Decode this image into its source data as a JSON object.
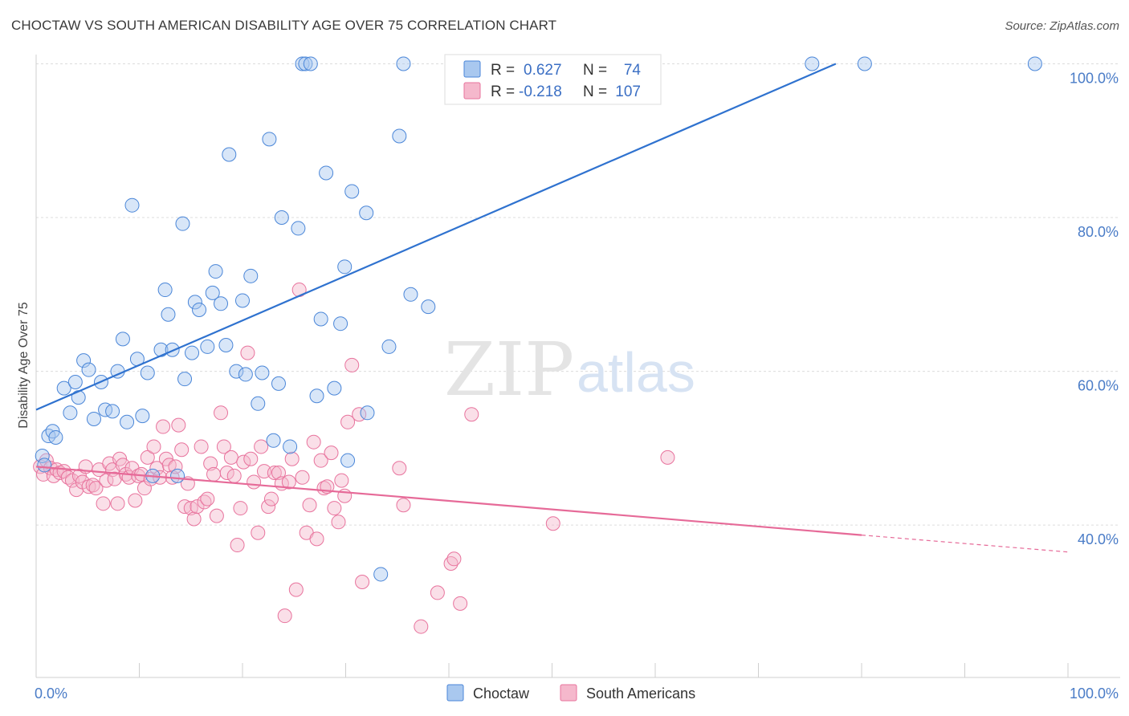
{
  "title": "CHOCTAW VS SOUTH AMERICAN DISABILITY AGE OVER 75 CORRELATION CHART",
  "source": "Source: ZipAtlas.com",
  "watermark": {
    "zip": "ZIP",
    "atlas": "atlas"
  },
  "colors": {
    "blue": "#4a86d8",
    "blue_fill": "#a9c8ef",
    "pink": "#e8739d",
    "pink_fill": "#f5b8cc",
    "tick_text": "#4a7cc7"
  },
  "legend": {
    "rows": [
      {
        "r_label": "R =",
        "r_value": "0.627",
        "n_label": "N =",
        "n_value": "74"
      },
      {
        "r_label": "R =",
        "r_value": "-0.218",
        "n_label": "N =",
        "n_value": "107"
      }
    ]
  },
  "bottom_legend": [
    "Choctaw",
    "South Americans"
  ],
  "chart_data": {
    "type": "scatter",
    "title": "CHOCTAW VS SOUTH AMERICAN DISABILITY AGE OVER 75 CORRELATION CHART",
    "xlabel": "",
    "ylabel": "Disability Age Over 75",
    "xlim": [
      0,
      100
    ],
    "ylim": [
      18,
      102
    ],
    "x_tick_labels": [
      "0.0%",
      "100.0%"
    ],
    "y_ticks": [
      40,
      60,
      80,
      100
    ],
    "y_tick_labels": [
      "40.0%",
      "60.0%",
      "80.0%",
      "100.0%"
    ],
    "grid": true,
    "series": [
      {
        "name": "Choctaw",
        "color": "#4a86d8",
        "trend": {
          "x": [
            0,
            77.5
          ],
          "y": [
            55.0,
            100.0
          ]
        },
        "points": [
          [
            0.6,
            49.0
          ],
          [
            0.8,
            47.8
          ],
          [
            1.2,
            51.6
          ],
          [
            1.6,
            52.2
          ],
          [
            1.9,
            51.4
          ],
          [
            2.7,
            57.8
          ],
          [
            3.3,
            54.6
          ],
          [
            3.8,
            58.6
          ],
          [
            4.1,
            56.6
          ],
          [
            4.6,
            61.4
          ],
          [
            5.1,
            60.2
          ],
          [
            5.6,
            53.8
          ],
          [
            6.3,
            58.6
          ],
          [
            6.7,
            55.0
          ],
          [
            7.4,
            54.8
          ],
          [
            7.9,
            60.0
          ],
          [
            8.4,
            64.2
          ],
          [
            8.8,
            53.4
          ],
          [
            9.3,
            81.6
          ],
          [
            9.8,
            61.6
          ],
          [
            10.3,
            54.2
          ],
          [
            10.8,
            59.8
          ],
          [
            11.3,
            46.4
          ],
          [
            12.1,
            62.8
          ],
          [
            12.5,
            70.6
          ],
          [
            12.8,
            67.4
          ],
          [
            13.2,
            62.8
          ],
          [
            13.7,
            46.4
          ],
          [
            14.2,
            79.2
          ],
          [
            14.4,
            59.0
          ],
          [
            15.1,
            62.4
          ],
          [
            15.4,
            69.0
          ],
          [
            15.8,
            68.0
          ],
          [
            16.6,
            63.2
          ],
          [
            17.1,
            70.2
          ],
          [
            17.4,
            73.0
          ],
          [
            17.9,
            68.8
          ],
          [
            18.4,
            63.4
          ],
          [
            18.7,
            88.2
          ],
          [
            19.4,
            60.0
          ],
          [
            20.0,
            69.2
          ],
          [
            20.3,
            59.6
          ],
          [
            20.8,
            72.4
          ],
          [
            21.5,
            55.8
          ],
          [
            21.9,
            59.8
          ],
          [
            22.6,
            90.2
          ],
          [
            23.0,
            51.0
          ],
          [
            23.5,
            58.4
          ],
          [
            23.8,
            80.0
          ],
          [
            24.6,
            50.2
          ],
          [
            25.4,
            78.6
          ],
          [
            25.8,
            100.0
          ],
          [
            26.1,
            100.0
          ],
          [
            26.6,
            100.0
          ],
          [
            27.2,
            56.8
          ],
          [
            27.6,
            66.8
          ],
          [
            28.1,
            85.8
          ],
          [
            28.9,
            57.8
          ],
          [
            29.5,
            66.2
          ],
          [
            29.9,
            73.6
          ],
          [
            30.2,
            48.4
          ],
          [
            30.6,
            83.4
          ],
          [
            32.0,
            80.6
          ],
          [
            32.1,
            54.6
          ],
          [
            33.4,
            33.6
          ],
          [
            34.2,
            63.2
          ],
          [
            35.2,
            90.6
          ],
          [
            35.6,
            100.0
          ],
          [
            36.3,
            70.0
          ],
          [
            38.0,
            68.4
          ],
          [
            45.2,
            100.0
          ],
          [
            75.2,
            100.0
          ],
          [
            80.3,
            100.0
          ],
          [
            96.8,
            100.0
          ]
        ]
      },
      {
        "name": "South Americans",
        "color": "#e8739d",
        "trend": {
          "x": [
            0,
            80.0,
            100
          ],
          "y": [
            47.6,
            38.7,
            36.5
          ]
        },
        "points": [
          [
            0.4,
            47.6
          ],
          [
            0.7,
            46.6
          ],
          [
            1.0,
            48.4
          ],
          [
            1.4,
            47.4
          ],
          [
            1.7,
            46.4
          ],
          [
            2.0,
            47.2
          ],
          [
            2.3,
            46.8
          ],
          [
            2.7,
            47.0
          ],
          [
            3.1,
            46.2
          ],
          [
            3.5,
            45.8
          ],
          [
            3.9,
            44.6
          ],
          [
            4.2,
            46.4
          ],
          [
            4.5,
            45.6
          ],
          [
            4.8,
            47.6
          ],
          [
            5.1,
            45.0
          ],
          [
            5.5,
            45.2
          ],
          [
            5.8,
            44.8
          ],
          [
            6.1,
            47.2
          ],
          [
            6.5,
            42.8
          ],
          [
            6.8,
            45.8
          ],
          [
            7.1,
            48.0
          ],
          [
            7.4,
            47.2
          ],
          [
            7.6,
            46.0
          ],
          [
            7.9,
            42.8
          ],
          [
            8.1,
            48.6
          ],
          [
            8.4,
            47.8
          ],
          [
            8.7,
            46.6
          ],
          [
            9.0,
            46.2
          ],
          [
            9.3,
            47.4
          ],
          [
            9.6,
            43.2
          ],
          [
            9.9,
            46.4
          ],
          [
            10.2,
            46.6
          ],
          [
            10.5,
            44.8
          ],
          [
            10.8,
            48.8
          ],
          [
            11.1,
            46.0
          ],
          [
            11.4,
            50.2
          ],
          [
            11.7,
            47.4
          ],
          [
            12.0,
            46.2
          ],
          [
            12.3,
            52.8
          ],
          [
            12.6,
            48.6
          ],
          [
            12.9,
            47.8
          ],
          [
            13.2,
            46.2
          ],
          [
            13.5,
            47.6
          ],
          [
            13.8,
            53.0
          ],
          [
            14.1,
            49.8
          ],
          [
            14.4,
            42.4
          ],
          [
            14.7,
            45.4
          ],
          [
            15.0,
            42.2
          ],
          [
            15.3,
            40.8
          ],
          [
            15.6,
            42.4
          ],
          [
            16.0,
            50.2
          ],
          [
            16.3,
            43.0
          ],
          [
            16.6,
            43.4
          ],
          [
            16.9,
            48.0
          ],
          [
            17.2,
            46.6
          ],
          [
            17.5,
            41.2
          ],
          [
            17.9,
            54.6
          ],
          [
            18.2,
            50.2
          ],
          [
            18.5,
            46.8
          ],
          [
            18.9,
            48.8
          ],
          [
            19.2,
            46.4
          ],
          [
            19.5,
            37.4
          ],
          [
            19.8,
            42.2
          ],
          [
            20.1,
            48.2
          ],
          [
            20.5,
            62.4
          ],
          [
            20.8,
            48.6
          ],
          [
            21.1,
            45.6
          ],
          [
            21.5,
            39.0
          ],
          [
            21.8,
            50.2
          ],
          [
            22.1,
            47.0
          ],
          [
            22.5,
            42.4
          ],
          [
            22.8,
            43.4
          ],
          [
            23.1,
            46.8
          ],
          [
            23.5,
            46.8
          ],
          [
            23.8,
            45.4
          ],
          [
            24.1,
            28.2
          ],
          [
            24.5,
            45.6
          ],
          [
            24.8,
            48.6
          ],
          [
            25.2,
            31.6
          ],
          [
            25.5,
            70.6
          ],
          [
            25.8,
            46.2
          ],
          [
            26.2,
            39.0
          ],
          [
            26.5,
            42.6
          ],
          [
            26.9,
            50.8
          ],
          [
            27.2,
            38.2
          ],
          [
            27.6,
            48.4
          ],
          [
            27.9,
            44.8
          ],
          [
            28.2,
            45.0
          ],
          [
            28.6,
            49.4
          ],
          [
            28.9,
            42.2
          ],
          [
            29.3,
            40.4
          ],
          [
            29.6,
            45.8
          ],
          [
            29.9,
            43.8
          ],
          [
            30.2,
            53.4
          ],
          [
            30.6,
            60.8
          ],
          [
            31.3,
            54.4
          ],
          [
            31.6,
            32.6
          ],
          [
            35.2,
            47.4
          ],
          [
            35.6,
            42.6
          ],
          [
            37.3,
            26.8
          ],
          [
            38.9,
            31.2
          ],
          [
            40.2,
            35.0
          ],
          [
            40.5,
            35.6
          ],
          [
            41.1,
            29.8
          ],
          [
            42.2,
            54.4
          ],
          [
            50.1,
            40.2
          ],
          [
            61.2,
            48.8
          ]
        ]
      }
    ]
  }
}
